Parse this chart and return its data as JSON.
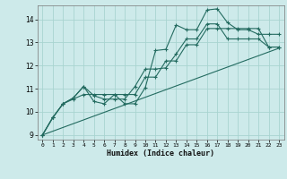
{
  "xlabel": "Humidex (Indice chaleur)",
  "xlim": [
    -0.5,
    23.5
  ],
  "ylim": [
    8.8,
    14.6
  ],
  "yticks": [
    9,
    10,
    11,
    12,
    13,
    14
  ],
  "xticks": [
    0,
    1,
    2,
    3,
    4,
    5,
    6,
    7,
    8,
    9,
    10,
    11,
    12,
    13,
    14,
    15,
    16,
    17,
    18,
    19,
    20,
    21,
    22,
    23
  ],
  "bg_color": "#cdeaea",
  "grid_color": "#a8d4d0",
  "line_color": "#236b60",
  "line1_x": [
    0,
    1,
    2,
    3,
    4,
    5,
    6,
    7,
    8,
    9,
    10,
    11,
    12,
    13,
    14,
    15,
    16,
    17,
    18,
    19,
    20,
    21,
    22,
    23
  ],
  "line1_y": [
    9.0,
    9.75,
    10.35,
    10.6,
    11.1,
    10.45,
    10.35,
    10.75,
    10.35,
    10.35,
    11.05,
    12.65,
    12.7,
    13.75,
    13.55,
    13.55,
    14.4,
    14.45,
    13.85,
    13.55,
    13.55,
    13.35,
    13.35,
    13.35
  ],
  "line2_x": [
    0,
    1,
    2,
    3,
    4,
    5,
    6,
    7,
    8,
    9,
    10,
    11,
    12,
    13,
    14,
    15,
    16,
    17,
    18,
    19,
    20,
    21,
    22,
    23
  ],
  "line2_y": [
    9.0,
    9.75,
    10.35,
    10.6,
    11.1,
    10.7,
    10.55,
    10.55,
    10.55,
    11.1,
    11.85,
    11.85,
    11.9,
    12.5,
    13.15,
    13.15,
    13.8,
    13.8,
    13.15,
    13.15,
    13.15,
    13.15,
    12.8,
    12.8
  ],
  "line3_x": [
    0,
    1,
    2,
    3,
    4,
    5,
    6,
    7,
    8,
    9,
    10,
    11,
    12,
    13,
    14,
    15,
    16,
    17,
    18,
    19,
    20,
    21,
    22,
    23
  ],
  "line3_y": [
    9.0,
    9.75,
    10.35,
    10.55,
    10.75,
    10.75,
    10.75,
    10.75,
    10.75,
    10.75,
    11.5,
    11.5,
    12.2,
    12.2,
    12.9,
    12.9,
    13.6,
    13.6,
    13.6,
    13.6,
    13.6,
    13.6,
    12.8,
    12.8
  ],
  "line4_x": [
    0,
    23
  ],
  "line4_y": [
    9.0,
    12.75
  ]
}
